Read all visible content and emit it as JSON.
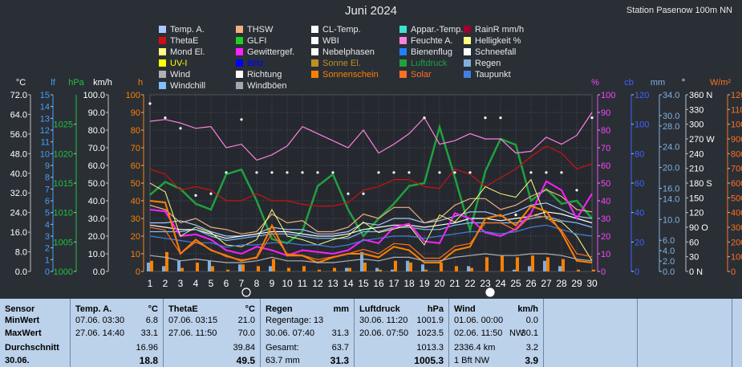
{
  "header": {
    "title": "Juni 2024",
    "station": "Station Pasenow 100m NN"
  },
  "legend": [
    {
      "label": "Temp. A.",
      "color": "#a8c8ff"
    },
    {
      "label": "THSW",
      "color": "#f0b080"
    },
    {
      "label": "CL-Temp.",
      "color": "#ffffff"
    },
    {
      "label": "Appar.-Temp.",
      "color": "#40e0d0"
    },
    {
      "label": "RainR mm/h",
      "color": "#a00030"
    },
    {
      "label": "ThetaE",
      "color": "#d01010"
    },
    {
      "label": "GLFI",
      "color": "#20d020"
    },
    {
      "label": "WBI",
      "color": "#ffffff"
    },
    {
      "label": "Feuchte A.",
      "color": "#ff80e0"
    },
    {
      "label": "Helligkeit %",
      "color": "#ffff80"
    },
    {
      "label": "Mond El.",
      "color": "#ffff80"
    },
    {
      "label": "Gewittergef.",
      "color": "#ff20ff"
    },
    {
      "label": "Nebelphasen",
      "color": "#ffffff"
    },
    {
      "label": "Bienenflug",
      "color": "#2080ff"
    },
    {
      "label": "Schneefall",
      "color": "#ffffff"
    },
    {
      "label": "UV-I",
      "color": "#ffff00"
    },
    {
      "label": "Blitz",
      "color": "#0000ff"
    },
    {
      "label": "Sonne El.",
      "color": "#c09020"
    },
    {
      "label": "Luftdruck",
      "color": "#20a040"
    },
    {
      "label": "Regen",
      "color": "#80b0e0"
    },
    {
      "label": "Wind",
      "color": "#b0b0b0"
    },
    {
      "label": "Richtung",
      "color": "#ffffff"
    },
    {
      "label": "Sonnenschein",
      "color": "#ff8000"
    },
    {
      "label": "Solar",
      "color": "#ff7020"
    },
    {
      "label": "Taupunkt",
      "color": "#4080e0"
    },
    {
      "label": "Windchill",
      "color": "#80c0ff"
    },
    {
      "label": "Windböen",
      "color": "#a0a8b0"
    }
  ],
  "chart_data": {
    "type": "line",
    "title": "Juni 2024",
    "x": [
      1,
      2,
      3,
      4,
      5,
      6,
      7,
      8,
      9,
      10,
      11,
      12,
      13,
      14,
      15,
      16,
      17,
      18,
      19,
      20,
      21,
      22,
      23,
      24,
      25,
      26,
      27,
      28,
      29,
      30
    ],
    "axes": [
      {
        "unit": "°C",
        "ticks": [
          "0.0",
          "8.0",
          "16.0",
          "24.0",
          "32.0",
          "40.0",
          "48.0",
          "56.0",
          "64.0",
          "72.0"
        ],
        "range": [
          0,
          80
        ]
      },
      {
        "unit": "lf",
        "ticks": [
          "0",
          "1",
          "2",
          "3",
          "4",
          "5",
          "6",
          "7",
          "8",
          "9",
          "10",
          "11",
          "12",
          "13",
          "14",
          "15"
        ],
        "range": [
          0,
          15
        ]
      },
      {
        "unit": "hPa",
        "ticks": [
          "1000",
          "1005",
          "1010",
          "1015",
          "1020",
          "1025"
        ],
        "range": [
          1000,
          1030
        ]
      },
      {
        "unit": "km/h",
        "ticks": [
          "0.0",
          "10.0",
          "20.0",
          "30.0",
          "40.0",
          "50.0",
          "60.0",
          "70.0",
          "80.0",
          "90.0",
          "100.0"
        ],
        "range": [
          0,
          100
        ]
      },
      {
        "unit": "h",
        "ticks": [
          "0",
          "10",
          "20",
          "30",
          "40",
          "50",
          "60",
          "70",
          "80",
          "90",
          "100"
        ],
        "range": [
          0,
          100
        ]
      },
      {
        "unit": "%",
        "ticks": [
          "0",
          "10",
          "20",
          "30",
          "40",
          "50",
          "60",
          "70",
          "80",
          "90",
          "100"
        ],
        "range": [
          0,
          100
        ]
      },
      {
        "unit": "cb",
        "ticks": [
          "0",
          "20",
          "40",
          "60",
          "80",
          "100",
          "120"
        ],
        "range": [
          0,
          120
        ]
      },
      {
        "unit": "mm",
        "ticks": [
          "0.0",
          "2.0",
          "4.0",
          "6.0",
          "10.0",
          "14.0",
          "16.0",
          "20.0",
          "24.0",
          "28.0",
          "30.0",
          "34.0"
        ],
        "range": [
          0,
          34
        ]
      },
      {
        "unit": "°",
        "ticks": [
          "0 N",
          "30",
          "60",
          "90 O",
          "120",
          "150",
          "180 S",
          "210",
          "240",
          "270 W",
          "300",
          "330",
          "360 N"
        ],
        "range": [
          0,
          360
        ]
      },
      {
        "unit": "W/m²",
        "ticks": [
          "0",
          "100",
          "200",
          "300",
          "400",
          "500",
          "600",
          "700",
          "800",
          "900",
          "1000",
          "1100",
          "1200"
        ],
        "range": [
          0,
          1200
        ]
      }
    ],
    "series": [
      {
        "name": "Luftdruck",
        "values": [
          1013.0,
          1015.2,
          1014.0,
          1011.5,
          1010.5,
          1016.5,
          1017.3,
          1012.0,
          1005.5,
          1004.8,
          1006.8,
          1014.5,
          1016.5,
          1010.5,
          1006.0,
          1009.0,
          1011.5,
          1014.5,
          1015.0,
          1024.5,
          1016.0,
          1007.0,
          1017.0,
          1022.5,
          1021.5,
          1012.0,
          1014.0,
          1011.5,
          1012.0,
          1009.0
        ]
      },
      {
        "name": "Feuchte A.",
        "values": [
          85,
          86,
          84,
          81,
          82,
          70,
          72,
          63,
          66,
          71,
          82,
          78,
          74,
          70,
          80,
          67,
          72,
          78,
          87,
          72,
          74,
          78,
          75,
          75,
          67,
          68,
          76,
          72,
          77,
          90
        ]
      },
      {
        "name": "ThetaE",
        "values": [
          58,
          55,
          46,
          48,
          46,
          40,
          40,
          44,
          40,
          40,
          38,
          37,
          37,
          39,
          46,
          48,
          52,
          52,
          48,
          47,
          58,
          55,
          48,
          53,
          58,
          65,
          71,
          67,
          58,
          61
        ]
      },
      {
        "name": "Temp. A.",
        "values": [
          22,
          22,
          23,
          21,
          18,
          16,
          16,
          17,
          20,
          19,
          19,
          17,
          17,
          18,
          22,
          21,
          24,
          24,
          22,
          23,
          25,
          27,
          27,
          25,
          27,
          30,
          31,
          28,
          25,
          24
        ]
      },
      {
        "name": "WBI",
        "values": [
          21,
          20,
          19,
          19,
          17,
          15,
          16,
          17,
          18,
          18,
          17,
          16,
          16,
          17,
          19,
          20,
          21,
          21,
          20,
          21,
          22,
          24,
          24,
          23,
          24,
          25,
          27,
          26,
          24,
          22
        ]
      },
      {
        "name": "Windchill",
        "values": [
          18,
          18,
          18,
          19,
          16,
          14,
          15,
          16,
          17,
          17,
          16,
          15,
          15,
          15,
          18,
          18,
          20,
          20,
          19,
          19,
          21,
          22,
          22,
          22,
          22,
          24,
          25,
          23,
          22,
          20
        ]
      },
      {
        "name": "THSW",
        "values": [
          30,
          28,
          22,
          24,
          20,
          19,
          17,
          18,
          26,
          22,
          23,
          18,
          18,
          20,
          26,
          24,
          29,
          29,
          22,
          24,
          30,
          33,
          33,
          28,
          30,
          34,
          37,
          34,
          28,
          27
        ]
      },
      {
        "name": "Gewittergef.",
        "values": [
          35,
          34,
          20,
          21,
          18,
          12,
          10,
          14,
          12,
          9,
          12,
          11,
          10,
          12,
          18,
          16,
          25,
          27,
          17,
          16,
          33,
          30,
          22,
          20,
          24,
          33,
          51,
          46,
          30,
          44
        ]
      },
      {
        "name": "Helligkeit %",
        "values": [
          50,
          45,
          20,
          25,
          22,
          15,
          14,
          18,
          35,
          20,
          18,
          15,
          18,
          20,
          28,
          22,
          24,
          26,
          15,
          32,
          28,
          37,
          48,
          44,
          42,
          52,
          30,
          28,
          20,
          6
        ]
      },
      {
        "name": "Taupunkt",
        "values": [
          16,
          15,
          14,
          13,
          13,
          11,
          12,
          12,
          13,
          13,
          12,
          12,
          11,
          12,
          14,
          15,
          16,
          16,
          15,
          16,
          17,
          18,
          18,
          17,
          18,
          20,
          21,
          19,
          17,
          16
        ]
      },
      {
        "name": "Sonnenschein",
        "values": [
          40,
          39,
          10,
          18,
          12,
          9,
          6,
          8,
          26,
          9,
          9,
          5,
          8,
          10,
          10,
          8,
          14,
          12,
          5,
          5,
          12,
          14,
          30,
          32,
          26,
          37,
          34,
          22,
          6,
          5
        ]
      },
      {
        "name": "Wind",
        "values": [
          9,
          8,
          6,
          7,
          6,
          5,
          5,
          6,
          8,
          6,
          6,
          5,
          5,
          6,
          7,
          6,
          8,
          8,
          6,
          6,
          8,
          9,
          10,
          9,
          9,
          10,
          10,
          9,
          7,
          6
        ]
      },
      {
        "name": "Solar",
        "values": [
          300,
          280,
          120,
          200,
          150,
          100,
          80,
          90,
          260,
          120,
          110,
          80,
          100,
          120,
          150,
          120,
          190,
          180,
          90,
          90,
          170,
          190,
          330,
          330,
          280,
          380,
          370,
          280,
          120,
          100
        ]
      }
    ],
    "bars": [
      {
        "name": "Regen",
        "values": [
          5,
          3,
          6,
          0,
          6,
          0,
          4,
          0,
          3,
          0,
          0,
          0,
          0,
          2,
          11,
          2,
          1,
          6,
          4,
          0,
          0,
          3,
          0,
          0,
          1,
          3,
          6,
          3,
          0,
          0
        ]
      },
      {
        "name": "Sonnenschein",
        "values": [
          6,
          11,
          2,
          5,
          3,
          1,
          4,
          3,
          7,
          2,
          3,
          1,
          2,
          2,
          5,
          1,
          6,
          5,
          1,
          5,
          3,
          2,
          8,
          9,
          8,
          9,
          8,
          7,
          1,
          1
        ]
      }
    ],
    "arrows": {
      "name": "Richtung",
      "values": [
        95,
        87,
        81,
        43,
        44,
        56,
        86,
        56,
        56,
        56,
        56,
        56,
        56,
        44,
        44,
        56,
        56,
        56,
        87,
        56,
        56,
        56,
        87,
        87,
        32,
        56,
        56,
        56,
        46,
        87
      ]
    },
    "markers": {
      "moon_days": [
        7,
        23
      ]
    }
  },
  "stats": {
    "sensor": {
      "title": "Sensor",
      "rows": [
        "MinWert",
        "MaxWert",
        "Durchschnitt",
        "30.06."
      ]
    },
    "temp": {
      "title": "Temp. A.",
      "unit": "°C",
      "min_time": "07.06.  03:30",
      "min": "6.8",
      "max_time": "27.06.  14:40",
      "max": "33.1",
      "avg": "16.96",
      "today": "18.8"
    },
    "theta": {
      "title": "ThetaE",
      "unit": "°C",
      "min_time": "07.06.  03:15",
      "min": "21.0",
      "max_time": "27.06.  11:50",
      "max": "70.0",
      "avg": "39.84",
      "today": "49.5"
    },
    "rain": {
      "title": "Regen",
      "unit": "mm",
      "days_label": "Regentage: 13",
      "max_time": "30.06.  07:40",
      "max": "31.3",
      "total_label": "Gesamt:",
      "total": "63.7",
      "today_left": "63.7 mm",
      "today": "31.3"
    },
    "pressure": {
      "title": "Luftdruck",
      "unit": "hPa",
      "min_time": "30.06.  11:20",
      "min": "1001.9",
      "max_time": "20.06.  07:50",
      "max": "1023.5",
      "avg": "1013.3",
      "today": "1005.3"
    },
    "wind": {
      "title": "Wind",
      "unit": "km/h",
      "min_time": "01.06.  00:00",
      "min": "0.0",
      "max_time": "02.06.  11:50",
      "max_dir": "NW",
      "max": "30.1",
      "dist": "2336.4 km",
      "avg": "3.2",
      "today_left": "1 Bft NW",
      "today": "3.9"
    }
  }
}
